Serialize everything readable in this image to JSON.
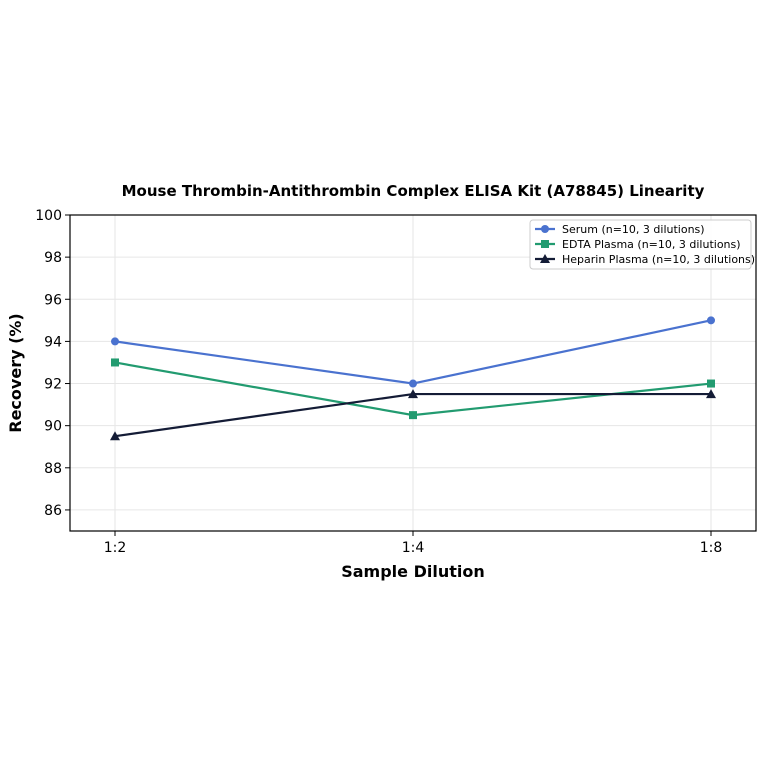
{
  "chart_data": {
    "type": "line",
    "title": "Mouse Thrombin-Antithrombin Complex ELISA Kit (A78845) Linearity",
    "xlabel": "Sample Dilution",
    "ylabel": "Recovery (%)",
    "categories": [
      "1:2",
      "1:4",
      "1:8"
    ],
    "ylim": [
      85,
      100
    ],
    "yticks": [
      86,
      88,
      90,
      92,
      94,
      96,
      98,
      100
    ],
    "grid": true,
    "legend_position": "top-right",
    "series": [
      {
        "name": "Serum (n=10, 3 dilutions)",
        "values": [
          94,
          92,
          95
        ],
        "color": "#4a72cf",
        "marker": "circle"
      },
      {
        "name": "EDTA Plasma (n=10, 3 dilutions)",
        "values": [
          93,
          90.5,
          92
        ],
        "color": "#229b70",
        "marker": "square"
      },
      {
        "name": "Heparin Plasma (n=10, 3 dilutions)",
        "values": [
          89.5,
          91.5,
          91.5
        ],
        "color": "#141c36",
        "marker": "triangle"
      }
    ]
  }
}
